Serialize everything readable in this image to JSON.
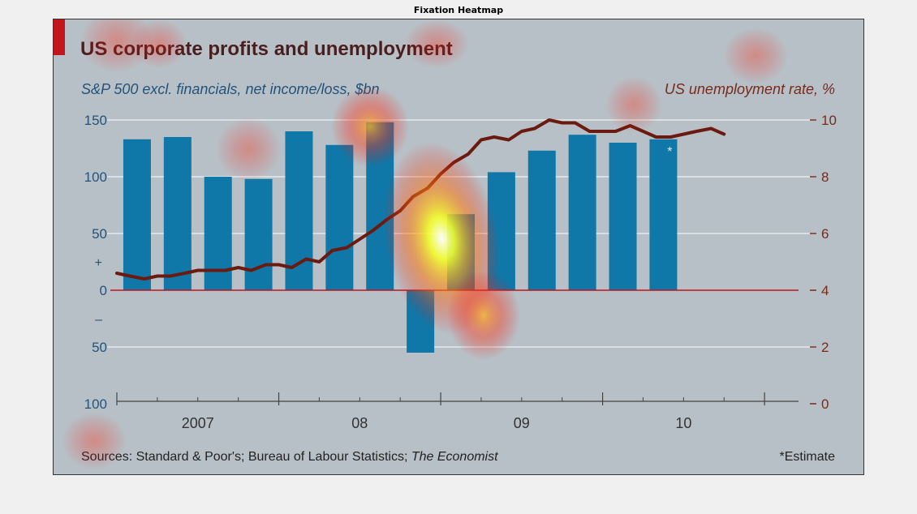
{
  "figure_title": "Fixation Heatmap",
  "colors": {
    "panel_bg": "#b7c0c6",
    "bar": "#0f78a8",
    "line": "#6b1a0f",
    "accent": "#c0161c",
    "left_axis_text": "#24537a",
    "right_axis_text": "#7a2a1a",
    "title_text": "#4a1e1e"
  },
  "chart_data": {
    "type": "bar",
    "title": "US corporate profits and unemployment",
    "left_axis": {
      "label": "S&P 500 excl. financials, net income/loss, $bn",
      "ylim": [
        -100,
        150
      ],
      "ticks": [
        150,
        100,
        50,
        0,
        -50,
        -100
      ],
      "tick_labels": [
        "150",
        "100",
        "50",
        "0",
        "50",
        "100"
      ],
      "sign_labels": [
        "+",
        "–"
      ]
    },
    "right_axis": {
      "label": "US unemployment rate, %",
      "ylim": [
        0,
        10
      ],
      "ticks": [
        10,
        8,
        6,
        4,
        2,
        0
      ],
      "tick_labels": [
        "10",
        "8",
        "6",
        "4",
        "2",
        "0"
      ]
    },
    "x_axis": {
      "range": [
        2006.5,
        2010.75
      ],
      "year_labels": [
        {
          "x": 2007.0,
          "label": "2007"
        },
        {
          "x": 2008.0,
          "label": "08"
        },
        {
          "x": 2009.0,
          "label": "09"
        },
        {
          "x": 2010.0,
          "label": "10"
        }
      ],
      "major_ticks": [
        2006.5,
        2007.5,
        2008.5,
        2009.5,
        2010.5
      ],
      "minor_ticks": [
        2006.75,
        2007.0,
        2007.25,
        2007.75,
        2008.0,
        2008.25,
        2008.75,
        2009.0,
        2009.25,
        2009.75,
        2010.0,
        2010.25
      ]
    },
    "series": [
      {
        "name": "S&P 500 excl. financials, net income/loss, $bn",
        "type": "bar",
        "axis": "left",
        "x": [
          2006.625,
          2006.875,
          2007.125,
          2007.375,
          2007.625,
          2007.875,
          2008.125,
          2008.375,
          2008.625,
          2008.875,
          2009.125,
          2009.375,
          2009.625,
          2009.875,
          2010.125
        ],
        "values": [
          133,
          135,
          100,
          98,
          140,
          128,
          148,
          -55,
          67,
          104,
          123,
          137,
          130,
          133,
          0
        ],
        "estimate_flag": [
          false,
          false,
          false,
          false,
          false,
          false,
          false,
          false,
          false,
          false,
          false,
          false,
          false,
          false,
          false
        ]
      },
      {
        "name": "US unemployment rate, %",
        "type": "line",
        "axis": "right",
        "x": [
          2006.5,
          2006.58,
          2006.67,
          2006.75,
          2006.83,
          2006.92,
          2007.0,
          2007.08,
          2007.17,
          2007.25,
          2007.33,
          2007.42,
          2007.5,
          2007.58,
          2007.67,
          2007.75,
          2007.83,
          2007.92,
          2008.0,
          2008.08,
          2008.17,
          2008.25,
          2008.33,
          2008.42,
          2008.5,
          2008.58,
          2008.67,
          2008.75,
          2008.83,
          2008.92,
          2009.0,
          2009.08,
          2009.17,
          2009.25,
          2009.33,
          2009.42,
          2009.5,
          2009.58,
          2009.67,
          2009.75,
          2009.83,
          2009.92,
          2010.0,
          2010.08,
          2010.17,
          2010.25
        ],
        "values": [
          4.6,
          4.5,
          4.4,
          4.5,
          4.5,
          4.6,
          4.7,
          4.7,
          4.7,
          4.8,
          4.7,
          4.9,
          4.9,
          4.8,
          5.1,
          5.0,
          5.4,
          5.5,
          5.8,
          6.1,
          6.5,
          6.8,
          7.3,
          7.6,
          8.1,
          8.5,
          8.8,
          9.3,
          9.4,
          9.3,
          9.6,
          9.7,
          10.0,
          9.9,
          9.9,
          9.6,
          9.6,
          9.6,
          9.8,
          9.6,
          9.4,
          9.4,
          9.5,
          9.6,
          9.7,
          9.5
        ]
      }
    ],
    "annotations": [
      "*"
    ],
    "estimate_note": "*Estimate",
    "sources_prefix": "Sources: Standard & Poor's; Bureau of Labour Statistics; ",
    "sources_italic": "The Economist",
    "heatmap_overlay": true
  }
}
